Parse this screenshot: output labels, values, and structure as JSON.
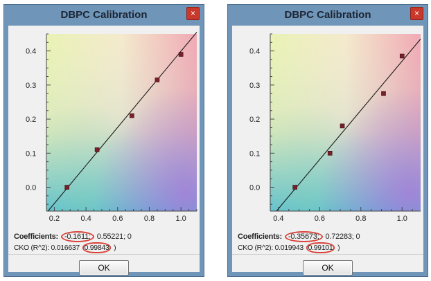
{
  "dialogs": [
    {
      "title": "DBPC Calibration",
      "close_glyph": "×",
      "close_icon": "close-icon",
      "coefficients_label": "Coefficients:",
      "coef_highlighted": "-0.1611;",
      "coef_rest": "0.55221;  0",
      "cko_text_a": "CKO (R^2): 0.016637",
      "cko_highlighted": "0.99843",
      "cko_text_b": ")",
      "ok_label": "OK",
      "chart_data": {
        "type": "scatter",
        "x_ticks": [
          "0.2",
          "0.4",
          "0.6",
          "0.8",
          "1.0"
        ],
        "y_ticks": [
          "0.0",
          "0.1",
          "0.2",
          "0.3",
          "0.4"
        ],
        "xlim": [
          0.15,
          1.1
        ],
        "ylim": [
          -0.07,
          0.45
        ],
        "points": [
          [
            0.28,
            0.0
          ],
          [
            0.47,
            0.11
          ],
          [
            0.69,
            0.21
          ],
          [
            0.85,
            0.315
          ],
          [
            1.0,
            0.39
          ]
        ],
        "fit_line": [
          [
            0.16,
            -0.07
          ],
          [
            1.1,
            0.455
          ]
        ],
        "grid": false
      }
    },
    {
      "title": "DBPC Calibration",
      "close_glyph": "×",
      "close_icon": "close-icon",
      "coefficients_label": "Coefficients:",
      "coef_highlighted": "-0.35673;",
      "coef_rest": "0.72283;  0",
      "cko_text_a": "CKO (R^2): 0.019943",
      "cko_highlighted": "0.99101",
      "cko_text_b": ")",
      "ok_label": "OK",
      "chart_data": {
        "type": "scatter",
        "x_ticks": [
          "0.4",
          "0.6",
          "0.8",
          "1.0"
        ],
        "y_ticks": [
          "0.0",
          "0.1",
          "0.2",
          "0.3",
          "0.4"
        ],
        "xlim": [
          0.36,
          1.09
        ],
        "ylim": [
          -0.07,
          0.45
        ],
        "points": [
          [
            0.48,
            0.0
          ],
          [
            0.65,
            0.1
          ],
          [
            0.71,
            0.18
          ],
          [
            0.91,
            0.275
          ],
          [
            1.0,
            0.385
          ]
        ],
        "fit_line": [
          [
            0.39,
            -0.07
          ],
          [
            1.09,
            0.435
          ]
        ],
        "grid": false
      }
    }
  ]
}
